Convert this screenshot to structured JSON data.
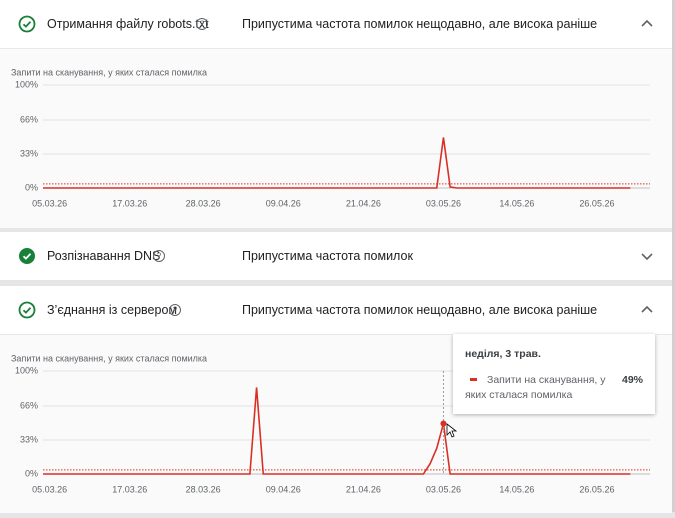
{
  "sections": [
    {
      "title": "Отримання файлу robots.txt",
      "status": "Припустима частота помилок нещодавно, але висока раніше"
    },
    {
      "title": "Розпізнавання DNS",
      "status": "Припустима частота помилок"
    },
    {
      "title": "З’єднання із сервером",
      "status": "Припустима частота помилок нещодавно, але висока раніше"
    }
  ],
  "chart_data": [
    {
      "type": "line",
      "title": "Запити на сканування, у яких сталася помилка",
      "xlim": [
        "04.03.26",
        "01.06.26"
      ],
      "xticks": [
        "05.03.26",
        "17.03.26",
        "28.03.26",
        "09.04.26",
        "21.04.26",
        "03.05.26",
        "14.05.26",
        "26.05.26"
      ],
      "ylim": [
        0,
        100
      ],
      "yticks": [
        {
          "value": 0,
          "label": "0%"
        },
        {
          "value": 33,
          "label": "33%"
        },
        {
          "value": 66,
          "label": "66%"
        },
        {
          "value": 100,
          "label": "100%"
        }
      ],
      "grid": true,
      "threshold": 4,
      "series": [
        {
          "name": "Запити на сканування, у яких сталася помилка",
          "color": "#d93025",
          "x": [
            "04.03.26",
            "02.05.26",
            "03.05.26",
            "04.05.26",
            "05.05.26",
            "31.05.26"
          ],
          "values": [
            0,
            0,
            49,
            1,
            0,
            0
          ]
        }
      ]
    },
    {
      "type": "line",
      "title": "Запити на сканування, у яких сталася помилка",
      "xlim": [
        "04.03.26",
        "01.06.26"
      ],
      "xticks": [
        "05.03.26",
        "17.03.26",
        "28.03.26",
        "09.04.26",
        "21.04.26",
        "03.05.26",
        "14.05.26",
        "26.05.26"
      ],
      "ylim": [
        0,
        100
      ],
      "yticks": [
        {
          "value": 0,
          "label": "0%"
        },
        {
          "value": 33,
          "label": "33%"
        },
        {
          "value": 66,
          "label": "66%"
        },
        {
          "value": 100,
          "label": "100%"
        }
      ],
      "grid": true,
      "threshold": 4,
      "series": [
        {
          "name": "Запити на сканування, у яких сталася помилка",
          "color": "#d93025",
          "x": [
            "04.03.26",
            "04.04.26",
            "05.04.26",
            "06.04.26",
            "30.04.26",
            "01.05.26",
            "02.05.26",
            "03.05.26",
            "04.05.26",
            "31.05.26"
          ],
          "values": [
            0,
            0,
            84,
            0,
            0,
            10,
            25,
            49,
            0,
            0
          ]
        }
      ],
      "tooltip": {
        "date": "неділя, 3 трав.",
        "value_label": "49%"
      }
    }
  ]
}
